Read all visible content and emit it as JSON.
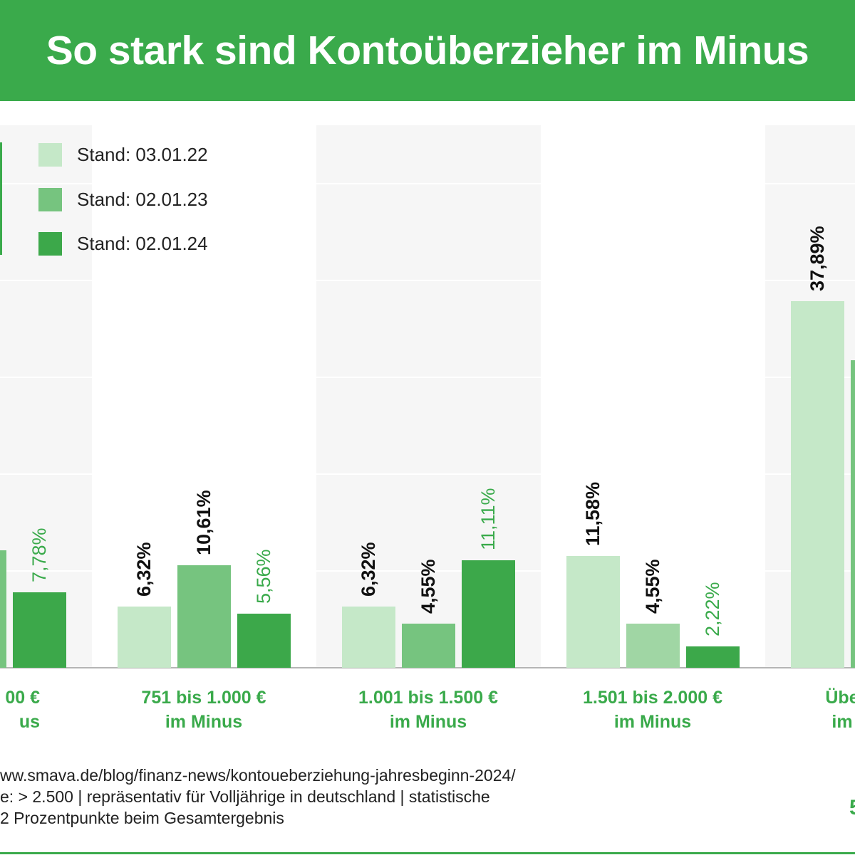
{
  "title": "So stark sind Kontoüberzieher im Minus",
  "colors": {
    "header": "#3aaa4b",
    "series": [
      "#c5e8c8",
      "#76c47f",
      "#3ca84a"
    ],
    "label_dark": "#111111",
    "label_green": "#3aaa4b"
  },
  "chart_data": {
    "type": "bar",
    "ylim": [
      0,
      60
    ],
    "grid": true,
    "legend_placement": "top-left",
    "series_names": [
      "Stand: 03.01.22",
      "Stand: 02.01.23",
      "Stand: 02.01.24"
    ],
    "categories": [
      {
        "line1": "00 €",
        "line2": "us",
        "values": [
          null,
          12.1,
          7.78
        ],
        "labels": [
          "",
          "",
          "7,78%"
        ]
      },
      {
        "line1": "751 bis 1.000 €",
        "line2": "im Minus",
        "values": [
          6.32,
          10.61,
          5.56
        ],
        "labels": [
          "6,32%",
          "10,61%",
          "5,56%"
        ]
      },
      {
        "line1": "1.001 bis 1.500 €",
        "line2": "im Minus",
        "values": [
          6.32,
          4.55,
          11.11
        ],
        "labels": [
          "6,32%",
          "4,55%",
          "11,11%"
        ]
      },
      {
        "line1": "1.501 bis 2.000 €",
        "line2": "im Minus",
        "values": [
          11.58,
          4.55,
          2.22
        ],
        "labels": [
          "11,58%",
          "4,55%",
          "2,22%"
        ]
      },
      {
        "line1": "Übe",
        "line2": "im",
        "values": [
          37.89,
          31.8,
          null
        ],
        "labels": [
          "37,89%",
          "",
          ""
        ]
      }
    ]
  },
  "footer": {
    "lines": [
      "ww.smava.de/blog/finanz-news/kontoueberziehung-jahresbeginn-2024/",
      "e: > 2.500 | repräsentativ für Volljährige in deutschland | statistische",
      "2 Prozentpunkte beim Gesamtergebnis"
    ],
    "logo_fragment": "5"
  }
}
